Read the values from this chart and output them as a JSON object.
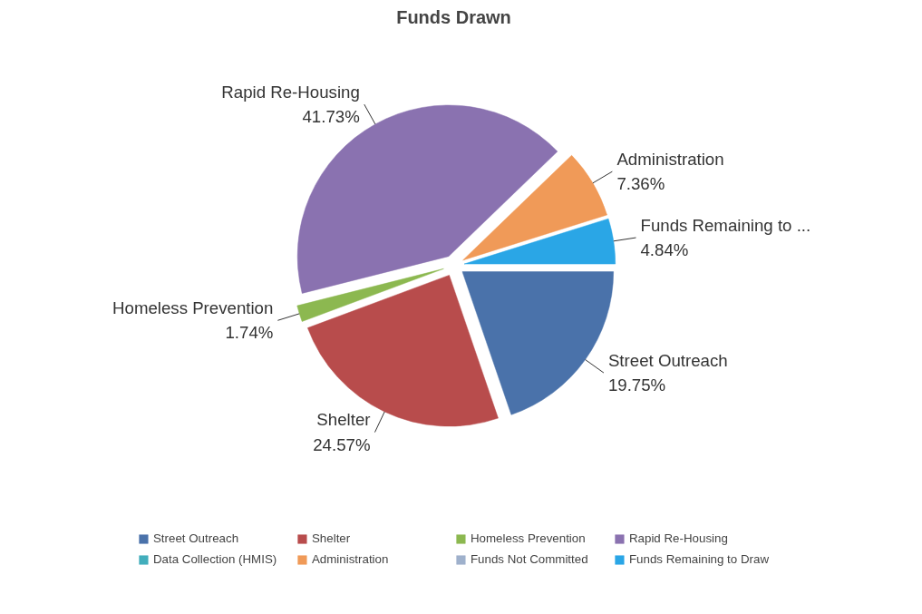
{
  "chart_data": {
    "type": "pie",
    "title": "Funds Drawn",
    "categories": [
      "Street Outreach",
      "Shelter",
      "Homeless Prevention",
      "Rapid Re-Housing",
      "Data Collection (HMIS)",
      "Administration",
      "Funds Not Committed",
      "Funds Remaining to Draw"
    ],
    "values": [
      19.75,
      24.57,
      1.74,
      41.73,
      0,
      7.36,
      0,
      4.84
    ],
    "colors": [
      "#4a72aa",
      "#b84c4c",
      "#8cb850",
      "#8a72b0",
      "#42aebc",
      "#f09a58",
      "#9fb1cc",
      "#2aa6e6"
    ],
    "value_labels": [
      "Street Outreach\n19.75%",
      "Shelter\n24.57%",
      "Homeless Prevention\n1.74%",
      "Rapid Re-Housing\n41.73%",
      null,
      "Administration\n7.36%",
      null,
      "Funds Remaining to ...\n4.84%"
    ],
    "legend": "bottom"
  }
}
